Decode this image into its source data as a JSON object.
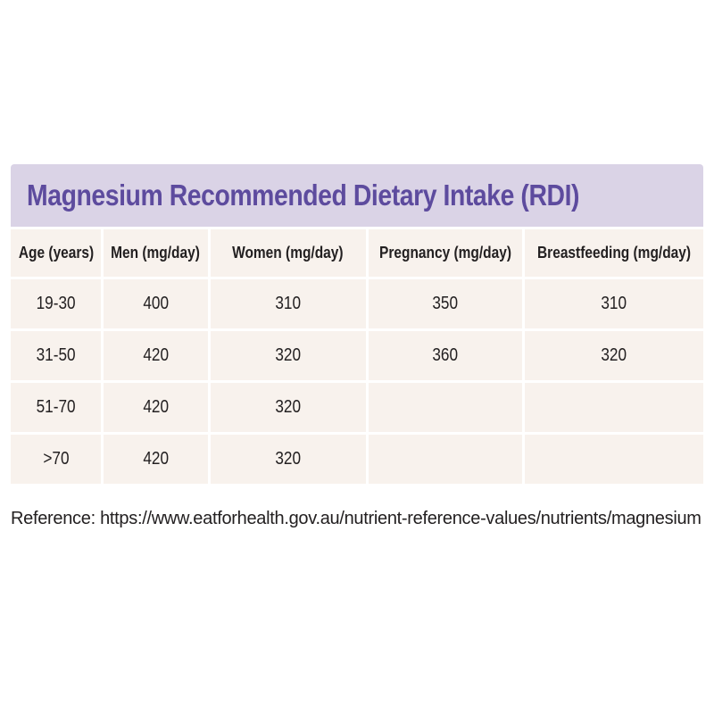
{
  "title": "Magnesium Recommended Dietary Intake (RDI)",
  "reference": "Reference: https://www.eatforhealth.gov.au/nutrient-reference-values/nutrients/magnesium",
  "colors": {
    "title_bar_bg": "#dad3e6",
    "title_text": "#5d4b9e",
    "cell_bg": "#f8f2ed",
    "cell_text": "#232021",
    "page_bg": "#ffffff"
  },
  "chart_data": {
    "type": "table",
    "title": "Magnesium Recommended Dietary Intake (RDI)",
    "columns": [
      "Age (years)",
      "Men (mg/day)",
      "Women (mg/day)",
      "Pregnancy (mg/day)",
      "Breastfeeding (mg/day)"
    ],
    "rows": [
      [
        "19-30",
        "400",
        "310",
        "350",
        "310"
      ],
      [
        "31-50",
        "420",
        "320",
        "360",
        "320"
      ],
      [
        "51-70",
        "420",
        "320",
        "",
        ""
      ],
      [
        ">70",
        "420",
        "320",
        "",
        ""
      ]
    ]
  }
}
